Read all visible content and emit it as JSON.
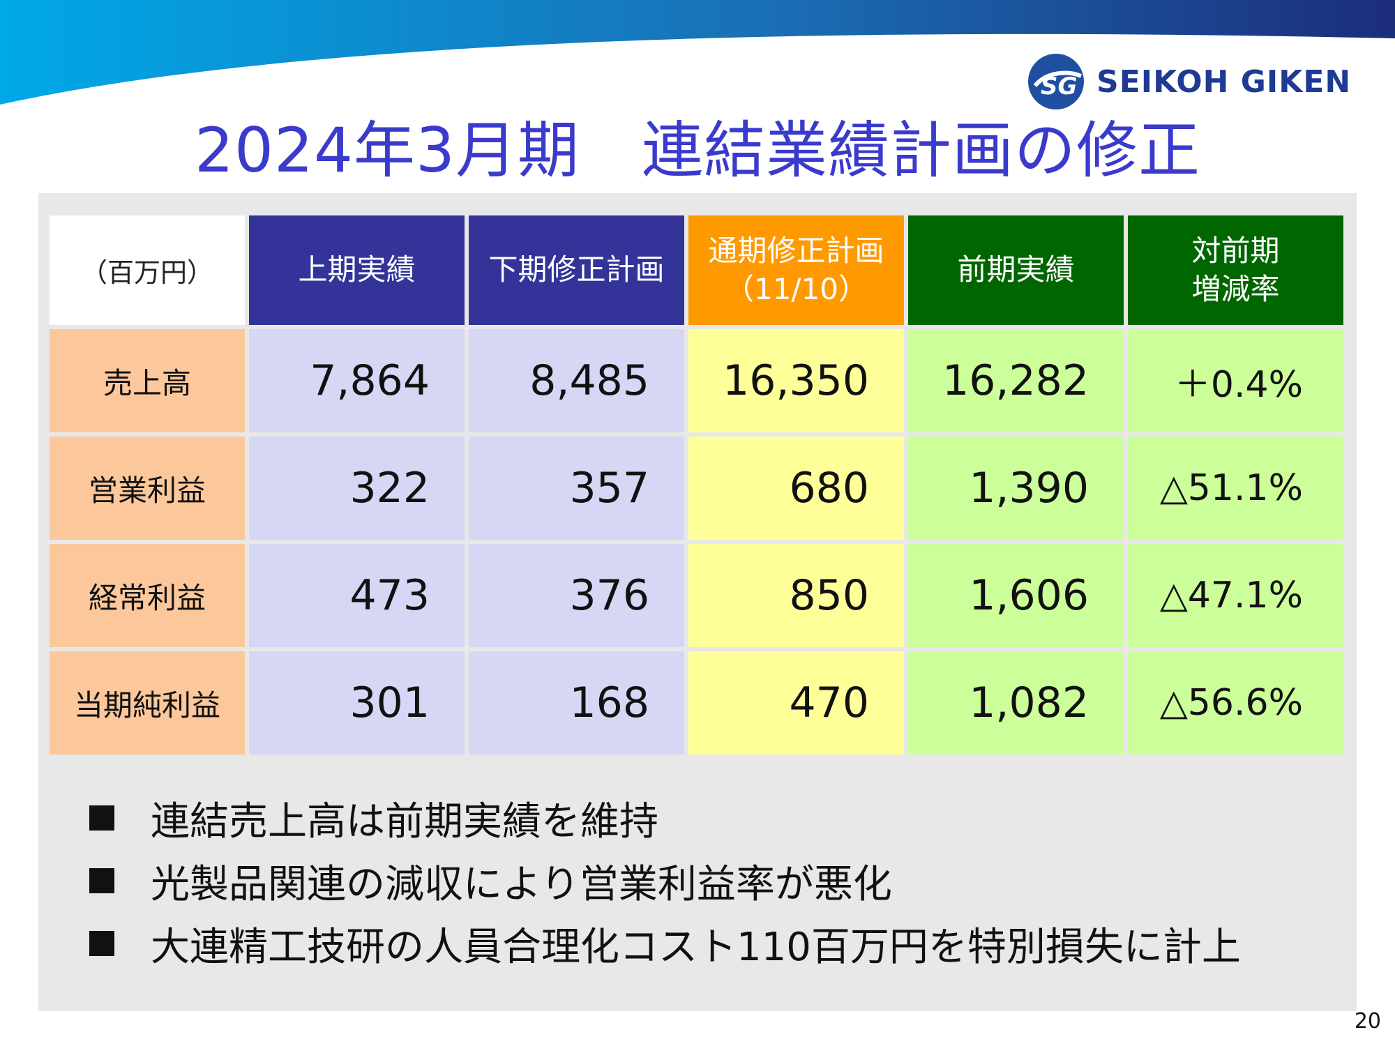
{
  "brand": {
    "logo_text": "SEIKOH GIKEN",
    "logo_mark": "SG",
    "accent": "#1f3a93"
  },
  "title": "2024年3月期　連結業績計画の修正",
  "table": {
    "unit": "（百万円）",
    "headers": [
      {
        "lines": [
          "上期実績"
        ],
        "color": "#333399"
      },
      {
        "lines": [
          "下期修正計画"
        ],
        "color": "#333399"
      },
      {
        "lines": [
          "通期修正計画",
          "（11/10）"
        ],
        "color": "#ff9900"
      },
      {
        "lines": [
          "前期実績"
        ],
        "color": "#006600"
      },
      {
        "lines": [
          "対前期",
          "増減率"
        ],
        "color": "#006600"
      }
    ],
    "rows": [
      {
        "label": "売上高",
        "values": [
          "7,864",
          "8,485",
          "16,350",
          "16,282",
          "＋0.4%"
        ]
      },
      {
        "label": "営業利益",
        "values": [
          "322",
          "357",
          "680",
          "1,390",
          "△51.1%"
        ]
      },
      {
        "label": "経常利益",
        "values": [
          "473",
          "376",
          "850",
          "1,606",
          "△47.1%"
        ]
      },
      {
        "label": "当期純利益",
        "values": [
          "301",
          "168",
          "470",
          "1,082",
          "△56.6%"
        ]
      }
    ]
  },
  "bullets": [
    "連結売上高は前期実績を維持",
    "光製品関連の減収により営業利益率が悪化",
    "大連精工技研の人員合理化コスト110百万円を特別損失に計上"
  ],
  "page_number": "20"
}
